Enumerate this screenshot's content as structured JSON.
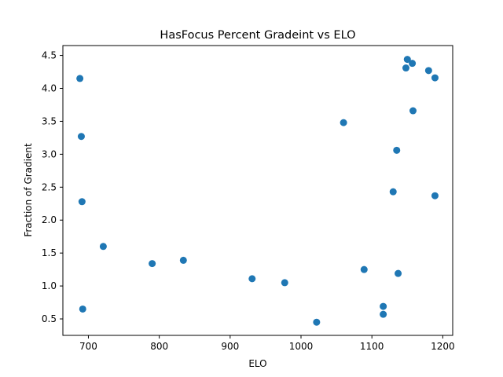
{
  "chart_data": {
    "type": "scatter",
    "title": "HasFocus Percent Gradeint vs ELO",
    "xlabel": "ELO",
    "ylabel": "Fraction of Gradient",
    "xlim": [
      664,
      1214
    ],
    "ylim": [
      0.25,
      4.65
    ],
    "xticks": [
      700,
      800,
      900,
      1000,
      1100,
      1200
    ],
    "xtick_labels": [
      "700",
      "800",
      "900",
      "1000",
      "1100",
      "1200"
    ],
    "yticks": [
      0.5,
      1.0,
      1.5,
      2.0,
      2.5,
      3.0,
      3.5,
      4.0,
      4.5
    ],
    "ytick_labels": [
      "0.5",
      "1.0",
      "1.5",
      "2.0",
      "2.5",
      "3.0",
      "3.5",
      "4.0",
      "4.5"
    ],
    "grid": false,
    "marker_color": "#1f77b4",
    "series": [
      {
        "points": [
          {
            "x": 688,
            "y": 4.15
          },
          {
            "x": 690,
            "y": 3.27
          },
          {
            "x": 691,
            "y": 2.28
          },
          {
            "x": 692,
            "y": 0.65
          },
          {
            "x": 721,
            "y": 1.6
          },
          {
            "x": 790,
            "y": 1.34
          },
          {
            "x": 834,
            "y": 1.39
          },
          {
            "x": 931,
            "y": 1.11
          },
          {
            "x": 977,
            "y": 1.05
          },
          {
            "x": 1022,
            "y": 0.45
          },
          {
            "x": 1060,
            "y": 3.48
          },
          {
            "x": 1089,
            "y": 1.25
          },
          {
            "x": 1116,
            "y": 0.69
          },
          {
            "x": 1116,
            "y": 0.57
          },
          {
            "x": 1130,
            "y": 2.43
          },
          {
            "x": 1135,
            "y": 3.06
          },
          {
            "x": 1137,
            "y": 1.19
          },
          {
            "x": 1148,
            "y": 4.31
          },
          {
            "x": 1150,
            "y": 4.44
          },
          {
            "x": 1157,
            "y": 4.38
          },
          {
            "x": 1158,
            "y": 3.66
          },
          {
            "x": 1180,
            "y": 4.27
          },
          {
            "x": 1189,
            "y": 4.16
          },
          {
            "x": 1189,
            "y": 2.37
          }
        ]
      }
    ]
  }
}
